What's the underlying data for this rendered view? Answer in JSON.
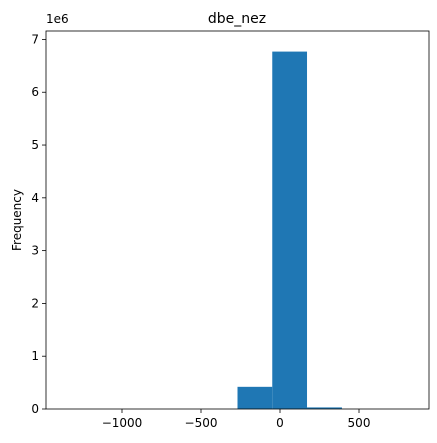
{
  "chart_data": {
    "type": "histogram",
    "title": "dbe_nez",
    "ylabel": "Frequency",
    "offset_text": "1e6",
    "bins": [
      -1371,
      -1151,
      -930,
      -710,
      -490,
      -269,
      -49,
      171,
      392,
      612,
      833
    ],
    "values": [
      0,
      0,
      0,
      0,
      0,
      0.42,
      6.77,
      0.03,
      0,
      0
    ],
    "color": "#1f77b4",
    "xlim": [
      -1481,
      943
    ],
    "xticks": [
      {
        "value": -1000,
        "label": "−1000"
      },
      {
        "value": -500,
        "label": "−500"
      },
      0,
      500
    ],
    "ylim": [
      0,
      7.16
    ],
    "yticks": [
      0,
      1,
      2,
      3,
      4,
      5,
      6,
      7
    ],
    "grid": false
  }
}
